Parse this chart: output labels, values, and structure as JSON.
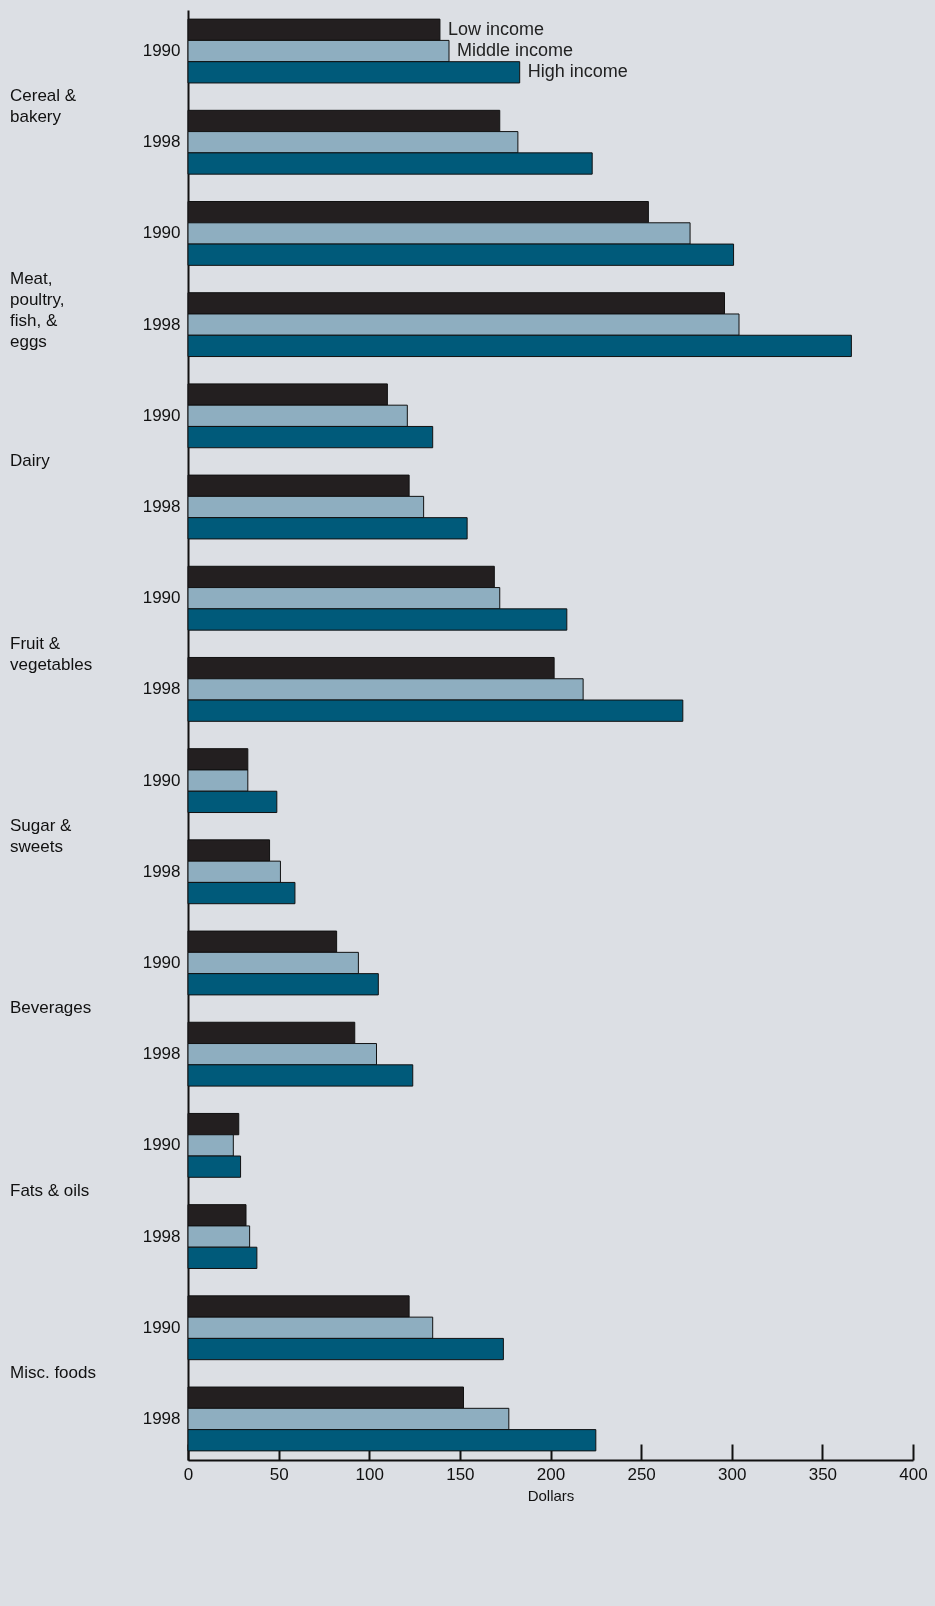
{
  "chart_data": {
    "type": "bar",
    "orientation": "horizontal",
    "xlabel": "Dollars",
    "categories": [
      "1990",
      "1998",
      "1990",
      "1998",
      "1990",
      "1998",
      "1990",
      "1998",
      "1990",
      "1998",
      "1990",
      "1998",
      "1990",
      "1998",
      "1990",
      "1998"
    ],
    "annotations": [
      "Cereal & bakery",
      "Meat, poultry, fish, & eggs",
      "Dairy",
      "Fruit & vegetables",
      "Sugar & sweets",
      "Beverages",
      "Fats & oils",
      "Misc. foods"
    ],
    "series": [
      {
        "name": "Low income",
        "color": "#231f20",
        "values": [
          139,
          172,
          254,
          296,
          110,
          122,
          169,
          202,
          33,
          45,
          82,
          92,
          28,
          32,
          122,
          152
        ]
      },
      {
        "name": "Middle income",
        "color": "#8eaec0",
        "values": [
          144,
          182,
          277,
          304,
          121,
          130,
          172,
          218,
          33,
          51,
          94,
          104,
          25,
          34,
          135,
          177
        ]
      },
      {
        "name": "High income",
        "color": "#005a7a",
        "values": [
          183,
          223,
          301,
          366,
          135,
          154,
          209,
          273,
          49,
          59,
          105,
          124,
          29,
          38,
          174,
          225
        ]
      }
    ],
    "xlim": [
      0,
      400
    ],
    "xticks": [
      0,
      50,
      100,
      150,
      200,
      250,
      300,
      350,
      400
    ]
  }
}
